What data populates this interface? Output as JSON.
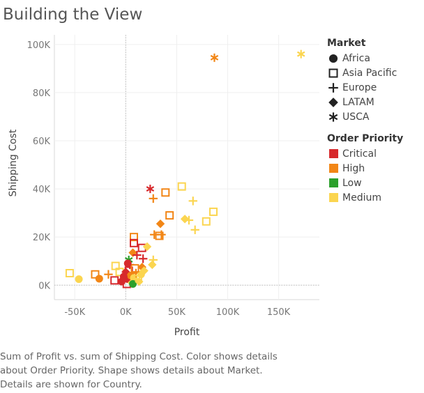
{
  "title": "Building the View",
  "caption_lines": [
    "Sum of Profit vs. sum of Shipping Cost.  Color shows details",
    "about Order Priority.  Shape shows details about Market.",
    "Details are shown for Country."
  ],
  "legend": {
    "market_title": "Market",
    "markets": [
      {
        "name": "Africa",
        "shape": "circle"
      },
      {
        "name": "Asia Pacific",
        "shape": "square"
      },
      {
        "name": "Europe",
        "shape": "plus"
      },
      {
        "name": "LATAM",
        "shape": "diamond"
      },
      {
        "name": "USCA",
        "shape": "asterisk"
      }
    ],
    "priority_title": "Order Priority",
    "priorities": [
      {
        "name": "Critical",
        "color": "#d7292c"
      },
      {
        "name": "High",
        "color": "#f28616"
      },
      {
        "name": "Low",
        "color": "#2ca02c"
      },
      {
        "name": "Medium",
        "color": "#fbd550"
      }
    ]
  },
  "chart_data": {
    "type": "scatter",
    "title": "Building the View",
    "xlabel": "Profit",
    "ylabel": "Shipping Cost",
    "xlim": [
      -70000,
      190000
    ],
    "ylim": [
      -6000,
      104000
    ],
    "xticks": [
      -50000,
      0,
      50000,
      100000,
      150000
    ],
    "xtick_labels": [
      "-50K",
      "0K",
      "50K",
      "100K",
      "150K"
    ],
    "yticks": [
      0,
      20000,
      40000,
      60000,
      80000,
      100000
    ],
    "ytick_labels": [
      "0K",
      "20K",
      "40K",
      "60K",
      "80K",
      "100K"
    ],
    "grid": true,
    "zero_lines": true,
    "legend_position": "right",
    "points": [
      {
        "x": 87000,
        "y": 94500,
        "market": "USCA",
        "priority": "High"
      },
      {
        "x": 172000,
        "y": 96000,
        "market": "USCA",
        "priority": "Medium"
      },
      {
        "x": 24000,
        "y": 40000,
        "market": "USCA",
        "priority": "Critical"
      },
      {
        "x": 39000,
        "y": 38500,
        "market": "Asia Pacific",
        "priority": "High"
      },
      {
        "x": 55000,
        "y": 41000,
        "market": "Asia Pacific",
        "priority": "Medium"
      },
      {
        "x": 27000,
        "y": 36000,
        "market": "Europe",
        "priority": "High"
      },
      {
        "x": 66000,
        "y": 35000,
        "market": "Europe",
        "priority": "Medium"
      },
      {
        "x": 86000,
        "y": 30500,
        "market": "Asia Pacific",
        "priority": "Medium"
      },
      {
        "x": 79000,
        "y": 26500,
        "market": "Asia Pacific",
        "priority": "Medium"
      },
      {
        "x": 43000,
        "y": 29000,
        "market": "Asia Pacific",
        "priority": "High"
      },
      {
        "x": 58000,
        "y": 27500,
        "market": "LATAM",
        "priority": "Medium"
      },
      {
        "x": 62000,
        "y": 27000,
        "market": "Europe",
        "priority": "Medium"
      },
      {
        "x": 68000,
        "y": 23000,
        "market": "Europe",
        "priority": "Medium"
      },
      {
        "x": 34000,
        "y": 25500,
        "market": "LATAM",
        "priority": "High"
      },
      {
        "x": 28000,
        "y": 21000,
        "market": "Europe",
        "priority": "High"
      },
      {
        "x": 35000,
        "y": 21000,
        "market": "Europe",
        "priority": "High"
      },
      {
        "x": 33000,
        "y": 20500,
        "market": "Asia Pacific",
        "priority": "High"
      },
      {
        "x": 8000,
        "y": 20000,
        "market": "Asia Pacific",
        "priority": "High"
      },
      {
        "x": 8000,
        "y": 17500,
        "market": "Asia Pacific",
        "priority": "Critical"
      },
      {
        "x": 16000,
        "y": 15500,
        "market": "Asia Pacific",
        "priority": "Critical"
      },
      {
        "x": 21000,
        "y": 16000,
        "market": "LATAM",
        "priority": "Medium"
      },
      {
        "x": 7000,
        "y": 13500,
        "market": "LATAM",
        "priority": "High"
      },
      {
        "x": 11000,
        "y": 12500,
        "market": "Europe",
        "priority": "Critical"
      },
      {
        "x": 17000,
        "y": 11000,
        "market": "Europe",
        "priority": "Critical"
      },
      {
        "x": 27000,
        "y": 10500,
        "market": "Europe",
        "priority": "Medium"
      },
      {
        "x": 3000,
        "y": 10500,
        "market": "USCA",
        "priority": "Low"
      },
      {
        "x": 26000,
        "y": 8500,
        "market": "LATAM",
        "priority": "Medium"
      },
      {
        "x": 16000,
        "y": 7500,
        "market": "LATAM",
        "priority": "High"
      },
      {
        "x": -55000,
        "y": 5000,
        "market": "Asia Pacific",
        "priority": "Medium"
      },
      {
        "x": -46000,
        "y": 2500,
        "market": "Africa",
        "priority": "Medium"
      },
      {
        "x": -30000,
        "y": 4500,
        "market": "Asia Pacific",
        "priority": "High"
      },
      {
        "x": -26000,
        "y": 2700,
        "market": "Africa",
        "priority": "High"
      },
      {
        "x": -17000,
        "y": 4500,
        "market": "Europe",
        "priority": "High"
      },
      {
        "x": -10000,
        "y": 8000,
        "market": "Asia Pacific",
        "priority": "Medium"
      },
      {
        "x": -11000,
        "y": 2000,
        "market": "Asia Pacific",
        "priority": "Critical"
      },
      {
        "x": -6000,
        "y": 5500,
        "market": "Asia Pacific",
        "priority": "Medium"
      },
      {
        "x": -4000,
        "y": 1500,
        "market": "Africa",
        "priority": "Critical"
      },
      {
        "x": 0,
        "y": 5500,
        "market": "LATAM",
        "priority": "Critical"
      },
      {
        "x": 2000,
        "y": 2500,
        "market": "Africa",
        "priority": "Critical"
      },
      {
        "x": 1000,
        "y": 500,
        "market": "Asia Pacific",
        "priority": "Critical"
      },
      {
        "x": 3000,
        "y": 6000,
        "market": "Asia Pacific",
        "priority": "Critical"
      },
      {
        "x": 5000,
        "y": 4000,
        "market": "Africa",
        "priority": "High"
      },
      {
        "x": 6000,
        "y": 1000,
        "market": "LATAM",
        "priority": "Medium"
      },
      {
        "x": 8000,
        "y": 3000,
        "market": "Africa",
        "priority": "Medium"
      },
      {
        "x": 10000,
        "y": 5000,
        "market": "Europe",
        "priority": "High"
      },
      {
        "x": 12000,
        "y": 2500,
        "market": "Asia Pacific",
        "priority": "Medium"
      },
      {
        "x": 15000,
        "y": 4500,
        "market": "Africa",
        "priority": "Medium"
      },
      {
        "x": 18000,
        "y": 6000,
        "market": "LATAM",
        "priority": "Medium"
      },
      {
        "x": 4000,
        "y": 8500,
        "market": "Europe",
        "priority": "Critical"
      },
      {
        "x": -2000,
        "y": 3500,
        "market": "Africa",
        "priority": "Critical"
      },
      {
        "x": 7000,
        "y": 500,
        "market": "Africa",
        "priority": "Low"
      },
      {
        "x": 13000,
        "y": 1500,
        "market": "LATAM",
        "priority": "Medium"
      },
      {
        "x": 9000,
        "y": 7000,
        "market": "Asia Pacific",
        "priority": "High"
      },
      {
        "x": 2000,
        "y": 9000,
        "market": "Africa",
        "priority": "Critical"
      }
    ]
  }
}
